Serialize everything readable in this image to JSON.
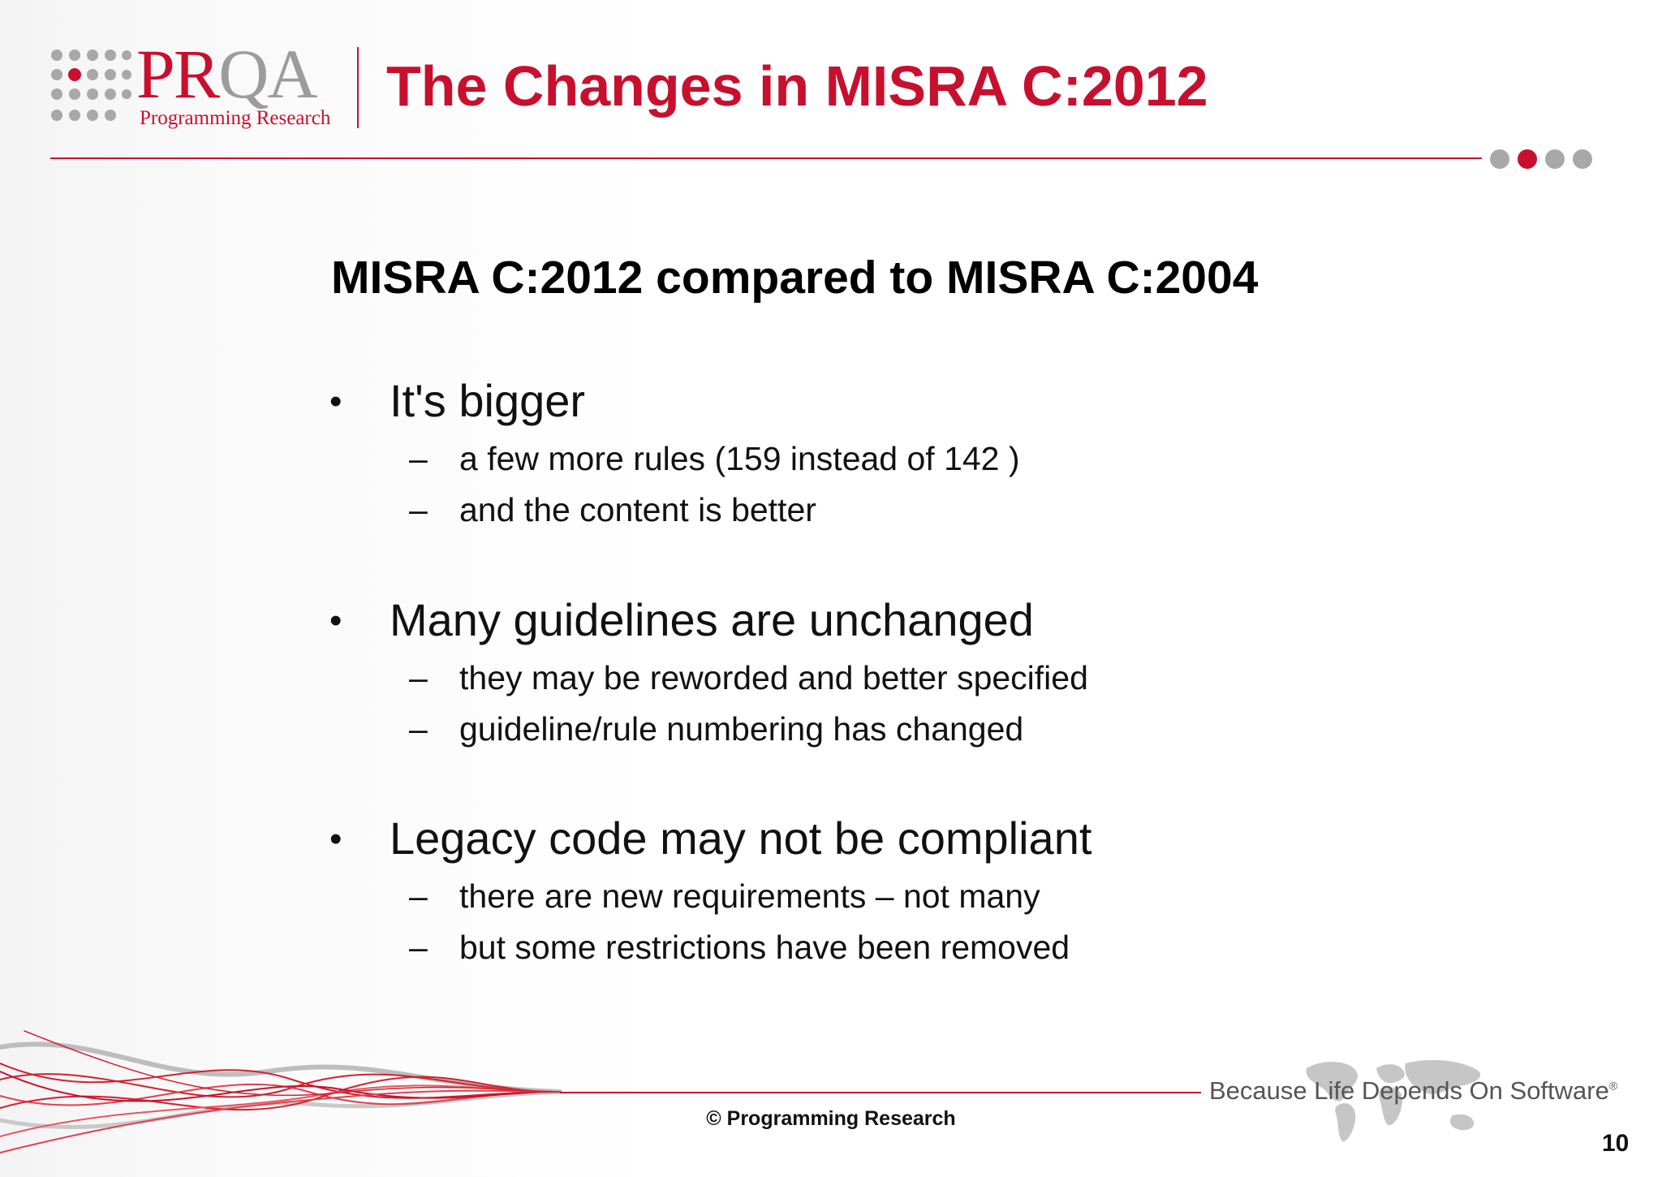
{
  "brand": {
    "logo_letters": "PR",
    "logo_letters_accent": "QA",
    "logo_subtitle": "Programming Research",
    "accent_color": "#c8102e",
    "grey_color": "#9c9c9c"
  },
  "slide": {
    "title": "The Changes in MISRA C:2012",
    "subtitle": "MISRA C:2012 compared to MISRA C:2004",
    "bullet_symbol": "•",
    "dash_symbol": "–",
    "bullets": [
      {
        "text": "It's bigger",
        "subs": [
          "a few more rules (159 instead of 142 )",
          "and the content is better"
        ]
      },
      {
        "text": "Many guidelines are unchanged",
        "subs": [
          "they may be reworded and better specified",
          "guideline/rule numbering has changed"
        ]
      },
      {
        "text": "Legacy code may not be compliant",
        "subs": [
          "there are new requirements – not many",
          "but some restrictions have been removed"
        ]
      }
    ]
  },
  "footer": {
    "copyright": "© Programming Research",
    "tagline": "Because Life Depends On Software",
    "tagline_mark": "®",
    "page_number": "10"
  },
  "icons": {
    "logo_dots": "dot-grid-icon",
    "nav_dots": "progress-dots-icon",
    "map": "world-map-icon",
    "wave": "wave-decoration"
  }
}
